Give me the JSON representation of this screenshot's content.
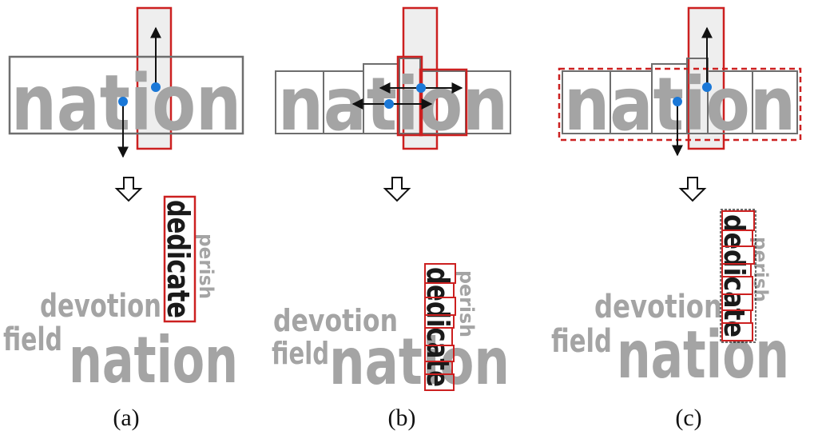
{
  "panels": [
    {
      "caption": "(a)",
      "main_word": "nation",
      "cloud": {
        "vertical": "dedicate",
        "small": "perish",
        "mid": "devotion",
        "left": "field",
        "big": "nation"
      }
    },
    {
      "caption": "(b)",
      "main_word": "nation",
      "cloud": {
        "vertical": "dedicate",
        "small": "perish",
        "mid": "devotion",
        "left": "field",
        "big": "nation"
      }
    },
    {
      "caption": "(c)",
      "main_word": "nation",
      "cloud": {
        "vertical": "dedicate",
        "small": "perish",
        "mid": "devotion",
        "left": "field",
        "big": "nation"
      }
    }
  ],
  "colors": {
    "word_gray": "#a4a4a4",
    "box_gray": "#6e6e6e",
    "highlight_red": "#cc2020",
    "control_point_blue": "#1a78d8",
    "arrow": "#111111"
  },
  "icons": [
    "down-arrow-icon"
  ]
}
